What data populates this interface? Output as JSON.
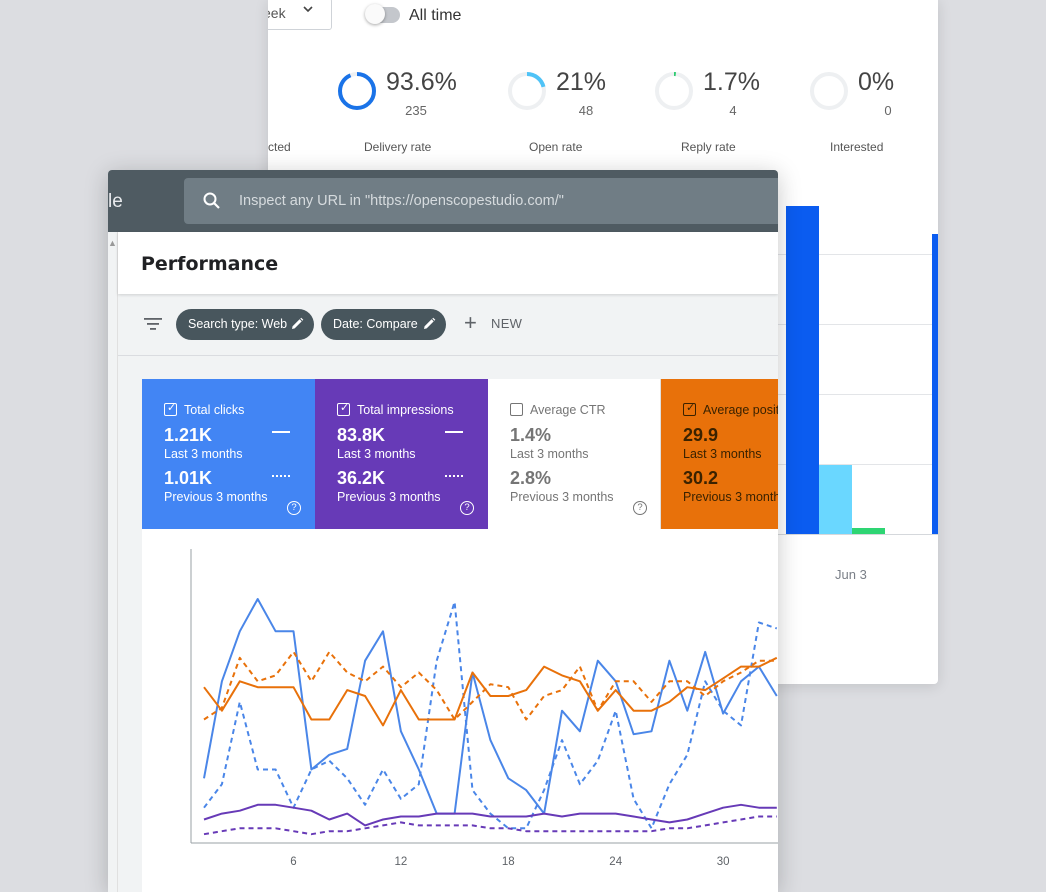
{
  "email_stats": {
    "period_select": {
      "value": "eek"
    },
    "all_time_toggle": {
      "label": "All time",
      "on": false
    },
    "cut_label": "cted",
    "stats": [
      {
        "pct": "93.6%",
        "count": "235",
        "label": "Delivery rate",
        "fraction": 0.936,
        "color": "#1a73e8"
      },
      {
        "pct": "21%",
        "count": "48",
        "label": "Open rate",
        "fraction": 0.21,
        "color": "#4fc3f7"
      },
      {
        "pct": "1.7%",
        "count": "4",
        "label": "Reply rate",
        "fraction": 0.017,
        "color": "#2ecc71"
      },
      {
        "pct": "0%",
        "count": "0",
        "label": "Interested",
        "fraction": 0.0,
        "color": "#9e9e9e"
      }
    ],
    "bar_chart_date": "Jun 3",
    "colors": {
      "blue": "#0b5cf0",
      "light_blue": "#6ad7ff",
      "green": "#2ed573"
    }
  },
  "search_console": {
    "brand_partial": "le",
    "search_placeholder": "Inspect any URL in \"https://openscopestudio.com/\"",
    "page_title": "Performance",
    "filters": [
      {
        "label": "Search type: Web"
      },
      {
        "label": "Date: Compare"
      }
    ],
    "new_button": "NEW",
    "metrics": [
      {
        "title": "Total clicks",
        "checked": true,
        "current": "1.21K",
        "current_period": "Last 3 months",
        "previous": "1.01K",
        "previous_period": "Previous 3 months",
        "bg": "#4285f4",
        "fg": "#ffffff"
      },
      {
        "title": "Total impressions",
        "checked": true,
        "current": "83.8K",
        "current_period": "Last 3 months",
        "previous": "36.2K",
        "previous_period": "Previous 3 months",
        "bg": "#673ab7",
        "fg": "#ffffff"
      },
      {
        "title": "Average CTR",
        "checked": false,
        "current": "1.4%",
        "current_period": "Last 3 months",
        "previous": "2.8%",
        "previous_period": "Previous 3 months",
        "bg": "#ffffff",
        "fg": "#757575"
      },
      {
        "title": "Average positi",
        "checked": true,
        "current": "29.9",
        "current_period": "Last 3 months",
        "previous": "30.2",
        "previous_period": "Previous 3 month",
        "bg": "#e8710a",
        "fg": "#3a2200"
      }
    ],
    "help_glyph": "?"
  },
  "chart_data": {
    "type": "line",
    "x_ticks": [
      "6",
      "12",
      "18",
      "24",
      "30"
    ],
    "x": [
      1,
      2,
      3,
      4,
      5,
      6,
      7,
      8,
      9,
      10,
      11,
      12,
      13,
      14,
      15,
      16,
      17,
      18,
      19,
      20,
      21,
      22,
      23,
      24,
      25,
      26,
      27,
      28,
      29,
      30,
      31,
      32,
      33
    ],
    "ylim": [
      0,
      100
    ],
    "series": [
      {
        "key": "clicks_current",
        "color": "#4a86e8",
        "dashed": false,
        "values": [
          22,
          55,
          72,
          83,
          72,
          72,
          25,
          30,
          32,
          62,
          72,
          38,
          25,
          10,
          10,
          58,
          35,
          22,
          18,
          10,
          45,
          38,
          62,
          55,
          37,
          38,
          62,
          45,
          65,
          44,
          55,
          60,
          50
        ]
      },
      {
        "key": "clicks_previous",
        "color": "#4a86e8",
        "dashed": true,
        "values": [
          12,
          20,
          48,
          25,
          25,
          12,
          25,
          28,
          22,
          13,
          25,
          15,
          20,
          62,
          82,
          18,
          10,
          5,
          5,
          18,
          35,
          20,
          28,
          45,
          15,
          5,
          20,
          30,
          55,
          45,
          40,
          75,
          73
        ]
      },
      {
        "key": "impressions_current",
        "color": "#673ab7",
        "dashed": false,
        "values": [
          8,
          10,
          11,
          13,
          13,
          12,
          11,
          8,
          10,
          6,
          8,
          9,
          9,
          10,
          10,
          10,
          9,
          9,
          9,
          10,
          9,
          10,
          10,
          10,
          9,
          8,
          7,
          8,
          10,
          12,
          13,
          12,
          12
        ]
      },
      {
        "key": "impressions_previous",
        "color": "#673ab7",
        "dashed": true,
        "values": [
          3,
          4,
          5,
          5,
          5,
          4,
          3,
          4,
          4,
          5,
          6,
          7,
          6,
          6,
          6,
          6,
          5,
          5,
          4,
          4,
          4,
          4,
          4,
          4,
          4,
          4,
          5,
          5,
          6,
          7,
          8,
          9,
          9
        ]
      },
      {
        "key": "position_current",
        "color": "#e8710a",
        "dashed": false,
        "values": [
          53,
          45,
          55,
          53,
          53,
          53,
          42,
          42,
          52,
          50,
          40,
          52,
          42,
          42,
          42,
          58,
          50,
          50,
          52,
          60,
          57,
          55,
          45,
          52,
          45,
          45,
          48,
          53,
          52,
          56,
          60,
          60,
          63
        ]
      },
      {
        "key": "position_previous",
        "color": "#e8710a",
        "dashed": true,
        "values": [
          42,
          46,
          63,
          55,
          57,
          65,
          55,
          65,
          58,
          55,
          60,
          53,
          58,
          52,
          42,
          48,
          54,
          53,
          42,
          50,
          52,
          60,
          45,
          55,
          55,
          48,
          55,
          55,
          50,
          55,
          58,
          62,
          62
        ]
      }
    ]
  }
}
